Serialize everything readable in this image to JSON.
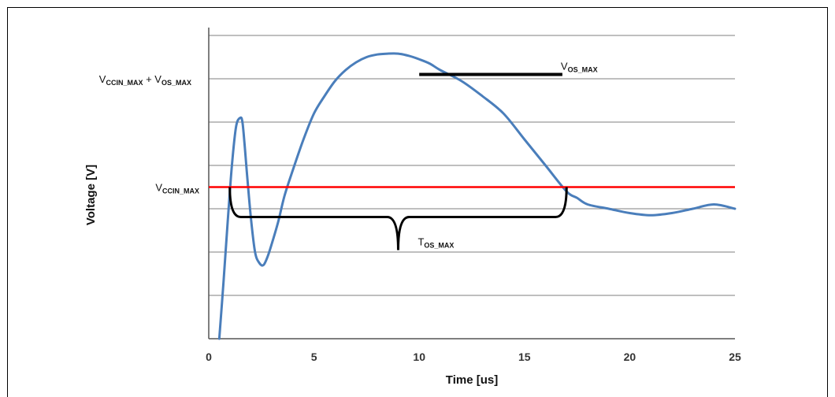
{
  "chart_data": {
    "type": "line",
    "title": "",
    "xlabel": "Time [us]",
    "ylabel": "Voltage [V]",
    "xlim": [
      0,
      25
    ],
    "ylim": [
      0,
      7
    ],
    "x_ticks": [
      "0",
      "5",
      "10",
      "15",
      "20",
      "25"
    ],
    "grid": "horizontal",
    "colors": {
      "waveform": "#4a7ebb",
      "limit": "#ff0000",
      "marker": "#000000"
    },
    "series": [
      {
        "x": [
          0.5,
          0.7,
          0.9,
          1.1,
          1.3,
          1.5,
          1.6,
          1.7,
          1.8,
          2.0,
          2.2,
          2.4,
          2.6,
          2.8,
          3.0,
          3.3,
          3.6,
          4.0,
          4.5,
          5.0,
          5.5,
          6.0,
          6.5,
          7.0,
          7.5,
          8.0,
          8.5,
          9.0,
          9.5,
          10.0,
          10.5,
          11.0,
          12.0,
          13.0,
          14.0,
          15.0,
          16.0,
          17.0,
          17.5,
          18.0,
          19.0,
          20.0,
          21.0,
          22.0,
          23.0,
          24.0,
          25.0
        ],
        "y": [
          0.0,
          1.3,
          2.7,
          4.0,
          4.9,
          5.1,
          5.0,
          4.5,
          3.9,
          2.8,
          2.0,
          1.75,
          1.7,
          1.9,
          2.2,
          2.7,
          3.3,
          3.9,
          4.6,
          5.2,
          5.6,
          5.95,
          6.2,
          6.38,
          6.5,
          6.56,
          6.58,
          6.58,
          6.53,
          6.45,
          6.35,
          6.2,
          5.95,
          5.6,
          5.2,
          4.6,
          4.0,
          3.4,
          3.25,
          3.1,
          3.0,
          2.9,
          2.85,
          2.9,
          3.0,
          3.1,
          3.0
        ]
      }
    ],
    "reference_lines": [
      {
        "y": 3.5,
        "label_main": "V",
        "label_sub": "CCIN_MAX"
      },
      {
        "y": 6.0,
        "label_main": "V",
        "label_sub": "CCIN_MAX",
        "label_join": " + V",
        "label_sub2": "OS_MAX"
      }
    ],
    "annotations": [
      {
        "label_main": "V",
        "label_sub": "OS_MAX",
        "kind": "bar",
        "x_start": 10.0,
        "x_end": 16.8,
        "y": 6.1
      },
      {
        "label_main": "T",
        "label_sub": "OS_MAX",
        "kind": "brace",
        "x_start": 1.0,
        "x_end": 17.0,
        "y": 3.5
      }
    ]
  }
}
